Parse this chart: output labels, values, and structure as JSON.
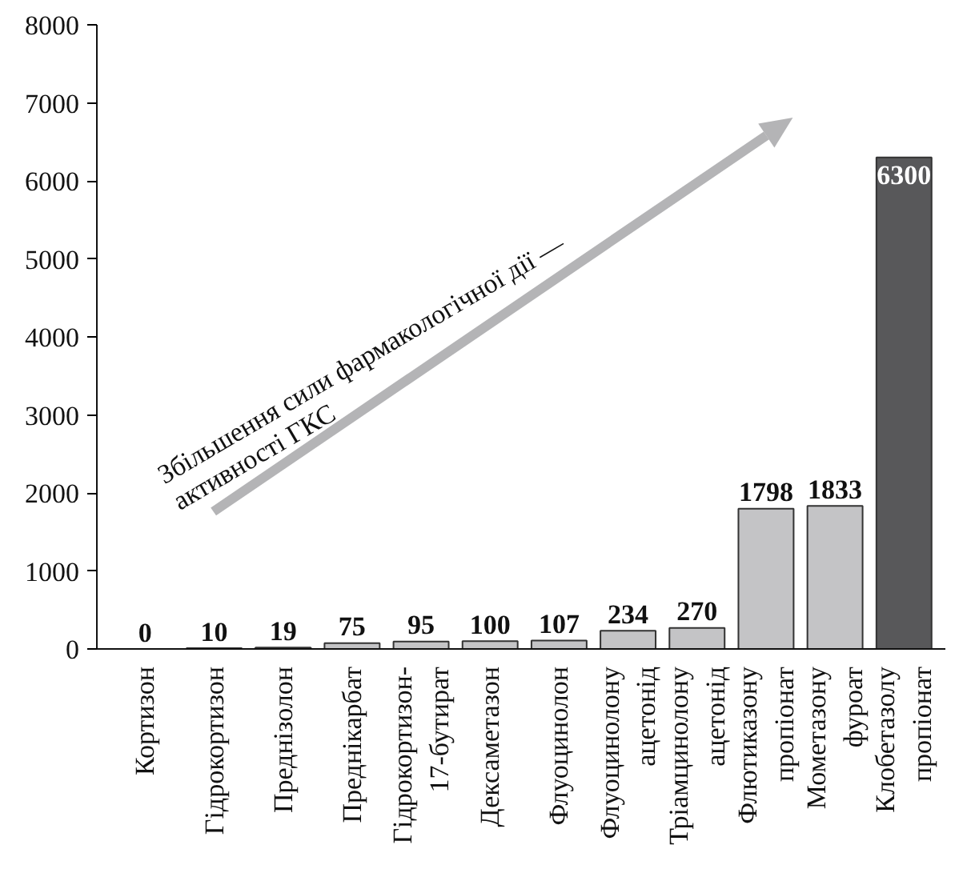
{
  "chart_data": {
    "type": "bar",
    "categories": [
      "Кортизон",
      "Гідрокортизон",
      "Преднізолон",
      "Преднікарбат",
      "Гідрокортизон-\n17-бутират",
      "Дексаметазон",
      "Флуоцинолон",
      "Флуоцинолону\nацетонід",
      "Тріамцинолону\nацетонід",
      "Флютиказону\nпропіонат",
      "Мометазону\nфуроат",
      "Клобетазолу\nпропіонат"
    ],
    "values": [
      0,
      10,
      19,
      75,
      95,
      100,
      107,
      234,
      270,
      1798,
      1833,
      6300
    ],
    "colors": [
      "#c4c4c6",
      "#c4c4c6",
      "#c4c4c6",
      "#c4c4c6",
      "#c4c4c6",
      "#c4c4c6",
      "#c4c4c6",
      "#c4c4c6",
      "#c4c4c6",
      "#c4c4c6",
      "#c4c4c6",
      "#58585a"
    ],
    "data_labels": true,
    "ylim": [
      0,
      8000
    ],
    "yticks": [
      0,
      1000,
      2000,
      3000,
      4000,
      5000,
      6000,
      7000,
      8000
    ],
    "grid": false,
    "annotations": [
      "Збільшення сили фармакологічної дії —\nактивності ГКС"
    ]
  }
}
